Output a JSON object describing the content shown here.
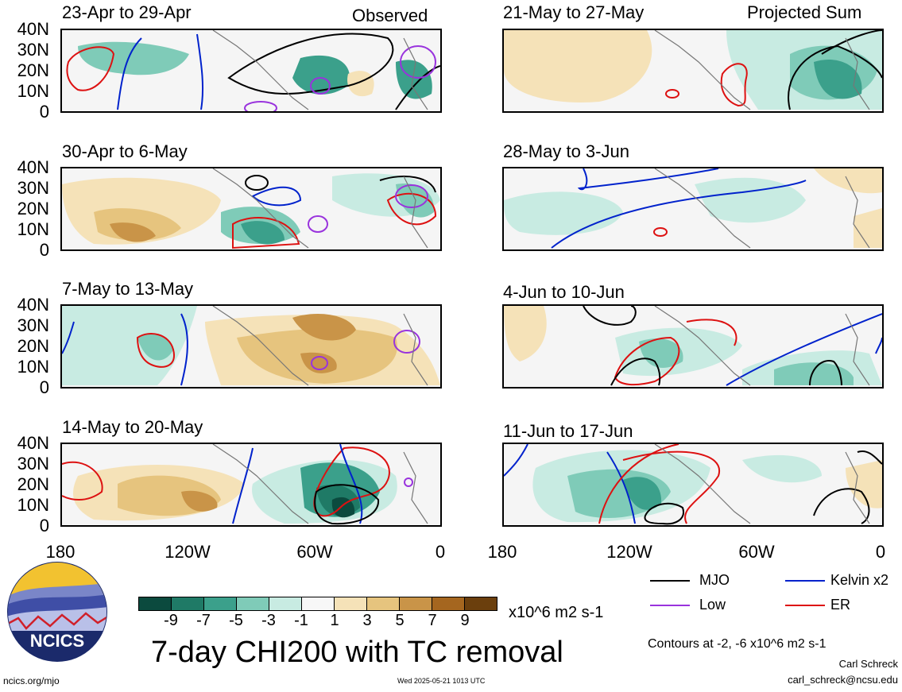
{
  "header": {
    "left_corner": "Observed",
    "right_corner": "Projected Sum"
  },
  "panels_left": [
    {
      "title": "23-Apr to 29-Apr"
    },
    {
      "title": "30-Apr to 6-May"
    },
    {
      "title": "7-May to 13-May"
    },
    {
      "title": "14-May to 20-May"
    }
  ],
  "panels_right": [
    {
      "title": "21-May to 27-May"
    },
    {
      "title": "28-May to 3-Jun"
    },
    {
      "title": "4-Jun to 10-Jun"
    },
    {
      "title": "11-Jun to 17-Jun"
    }
  ],
  "y_ticks": [
    "40N",
    "30N",
    "20N",
    "10N",
    "0"
  ],
  "x_ticks": [
    "180",
    "120W",
    "60W",
    "0"
  ],
  "colorbar": {
    "labels": [
      "-9",
      "-7",
      "-5",
      "-3",
      "-1",
      "1",
      "3",
      "5",
      "7",
      "9"
    ],
    "unit": "x10^6 m2 s-1",
    "colors": [
      "#0b4a3e",
      "#1f7a66",
      "#3ba08b",
      "#7fcbb8",
      "#c8ebe2",
      "#f7f7f7",
      "#f5e2b8",
      "#e6c47e",
      "#c99448",
      "#a5661f",
      "#6b3f0d"
    ]
  },
  "legend": {
    "mjo": "MJO",
    "kelvin": "Kelvin x2",
    "low": "Low",
    "er": "ER",
    "colors": {
      "mjo": "#000000",
      "kelvin": "#0022cc",
      "low": "#9933dd",
      "er": "#dd1111"
    }
  },
  "chart_title": "7-day CHI200 with TC removal",
  "contour_note": "Contours at -2, -6 x10^6 m2 s-1",
  "author": "Carl Schreck",
  "email": "carl_schreck@ncsu.edu",
  "site": "ncics.org/mjo",
  "timestamp": "Wed 2025-05-21 1013 UTC",
  "logo_text": "NCICS"
}
